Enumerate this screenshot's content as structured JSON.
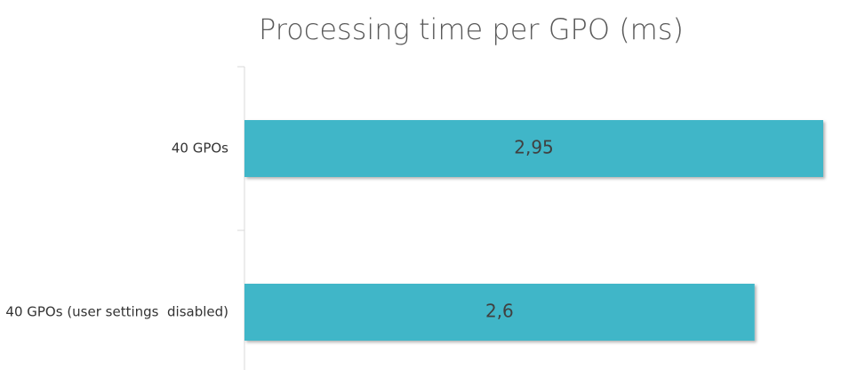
{
  "chart_data": {
    "type": "bar",
    "orientation": "horizontal",
    "title": "Processing time per GPO (ms)",
    "categories": [
      "40 GPOs",
      "40 GPOs (user settings  disabled)"
    ],
    "values": [
      2.95,
      2.6
    ],
    "value_labels": [
      "2,95",
      "2,6"
    ],
    "color": "#41b6c8"
  }
}
